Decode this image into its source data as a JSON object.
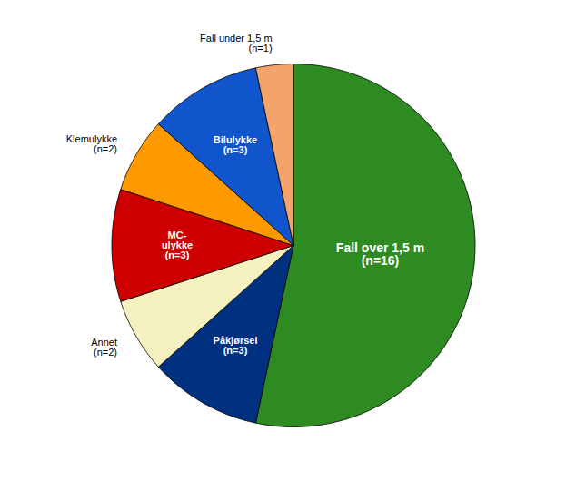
{
  "chart_data": {
    "type": "pie",
    "categories": [
      "Fall over 1,5 m\n(n=16)",
      "Påkjørsel\n(n=3)",
      "Annet\n(n=2)",
      "MC-\nulykke\n(n=3)",
      "Klemulykke\n(n=2)",
      "Bilulykke\n(n=3)",
      "Fall under 1,5 m\n(n=1)"
    ],
    "values": [
      16,
      3,
      2,
      3,
      2,
      3,
      1
    ],
    "colors": [
      "#2E8B22",
      "#003080",
      "#F5F0C0",
      "#CC0000",
      "#FF9900",
      "#1155CC",
      "#F4A46A"
    ]
  }
}
